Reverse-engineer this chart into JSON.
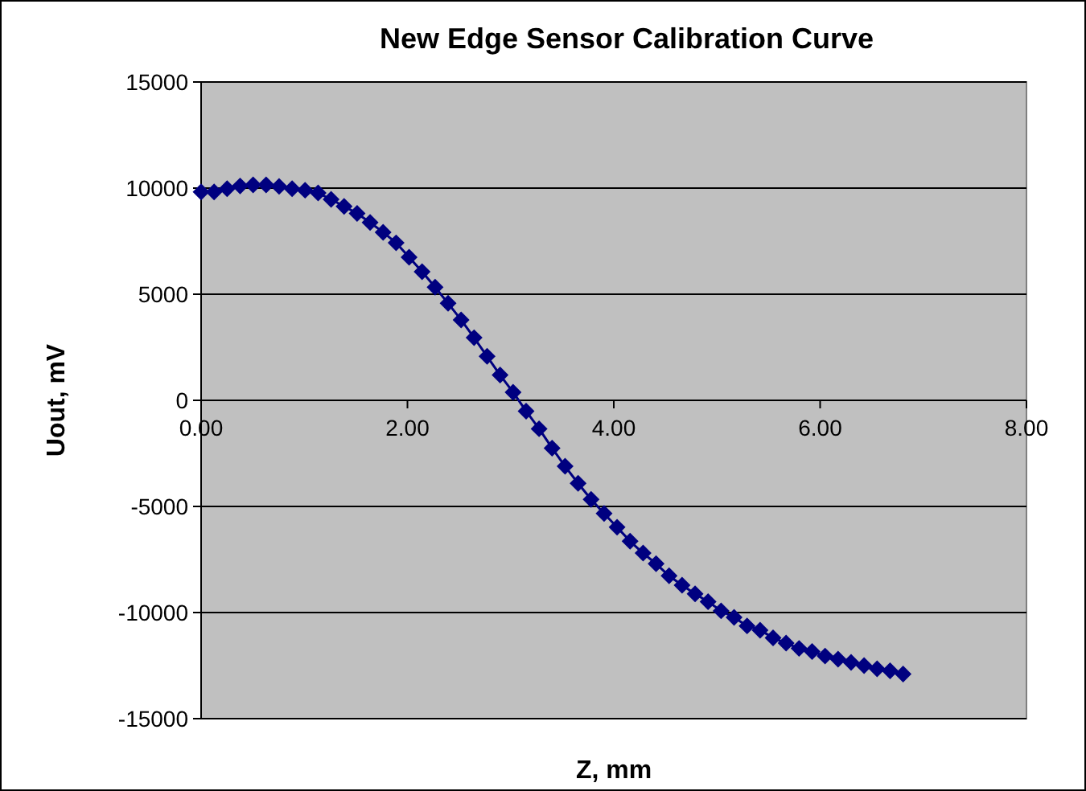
{
  "chart_data": {
    "type": "line",
    "title": "New Edge Sensor Calibration Curve",
    "xlabel": "Z, mm",
    "ylabel": "Uout, mV",
    "x": [
      0,
      0.126,
      0.252,
      0.378,
      0.504,
      0.63,
      0.756,
      0.882,
      1.008,
      1.134,
      1.26,
      1.386,
      1.512,
      1.638,
      1.764,
      1.89,
      2.016,
      2.142,
      2.268,
      2.394,
      2.52,
      2.646,
      2.772,
      2.898,
      3.024,
      3.15,
      3.276,
      3.402,
      3.528,
      3.654,
      3.78,
      3.906,
      4.032,
      4.158,
      4.284,
      4.41,
      4.536,
      4.662,
      4.788,
      4.914,
      5.04,
      5.166,
      5.292,
      5.418,
      5.544,
      5.67,
      5.796,
      5.922,
      6.048,
      6.174,
      6.3,
      6.426,
      6.552,
      6.678,
      6.804
    ],
    "series": [
      {
        "color": "#000080",
        "values": [
          9820,
          9820,
          9970,
          10100,
          10150,
          10150,
          10080,
          9970,
          9900,
          9770,
          9470,
          9140,
          8810,
          8380,
          7920,
          7420,
          6740,
          6060,
          5330,
          4570,
          3790,
          2950,
          2070,
          1190,
          380,
          -510,
          -1340,
          -2250,
          -3110,
          -3910,
          -4670,
          -5330,
          -5980,
          -6640,
          -7200,
          -7700,
          -8270,
          -8710,
          -9120,
          -9490,
          -9920,
          -10230,
          -10630,
          -10830,
          -11190,
          -11440,
          -11690,
          -11840,
          -12050,
          -12200,
          -12350,
          -12500,
          -12650,
          -12750,
          -12900
        ]
      }
    ],
    "xlim": [
      0,
      8
    ],
    "xticks": [
      {
        "value": 0,
        "label": "0.00"
      },
      {
        "value": 2,
        "label": "2.00"
      },
      {
        "value": 4,
        "label": "4.00"
      },
      {
        "value": 6,
        "label": "6.00"
      },
      {
        "value": 8,
        "label": "8.00"
      }
    ],
    "ylim": [
      -15000,
      15000
    ],
    "yticks": [
      -15000,
      -10000,
      -5000,
      0,
      5000,
      10000,
      15000
    ],
    "grid": "y",
    "marker": "diamond",
    "line_style": "solid"
  }
}
